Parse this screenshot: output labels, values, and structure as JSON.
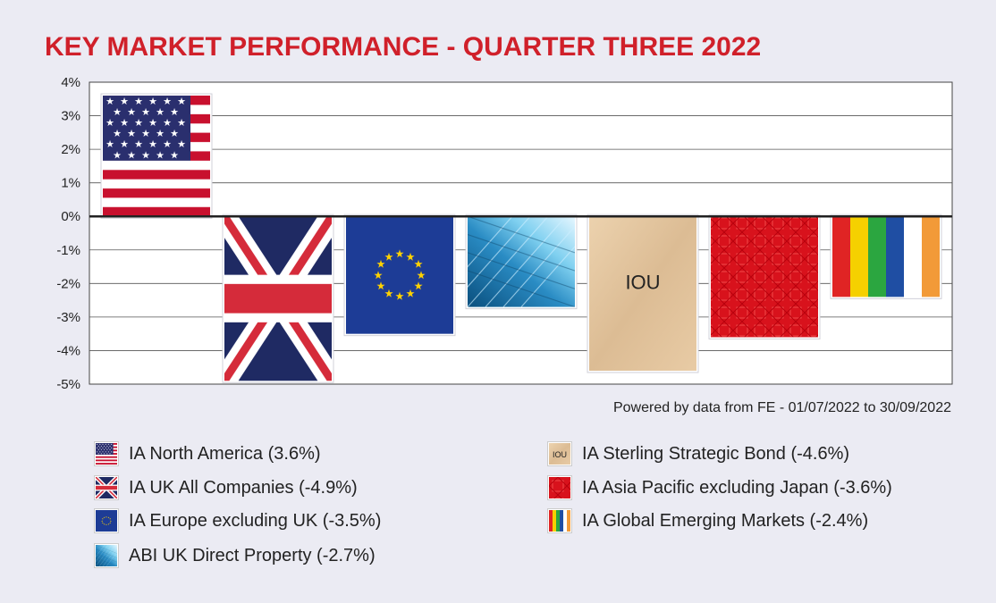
{
  "title": "KEY MARKET PERFORMANCE - QUARTER THREE 2022",
  "source_note": "Powered by data from FE - 01/07/2022 to 30/09/2022",
  "chart_data": {
    "type": "bar",
    "title": "KEY MARKET PERFORMANCE - QUARTER THREE 2022",
    "ylim": [
      -5,
      4
    ],
    "yticks": [
      4,
      3,
      2,
      1,
      0,
      -1,
      -2,
      -3,
      -4,
      -5
    ],
    "ytick_labels": [
      "4%",
      "3%",
      "2%",
      "1%",
      "0%",
      "-1%",
      "-2%",
      "-3%",
      "-4%",
      "-5%"
    ],
    "grid": true,
    "legend_placement": "bottom",
    "categories": [
      "IA North America",
      "IA UK All Companies",
      "IA Europe excluding UK",
      "ABI UK Direct Property",
      "IA Sterling Strategic Bond",
      "IA Asia Pacific excluding Japan",
      "IA Global Emerging Markets"
    ],
    "values": [
      3.6,
      -4.9,
      -3.5,
      -2.7,
      -4.6,
      -3.6,
      -2.4
    ],
    "bar_patterns": [
      "us-flag",
      "uk-flag",
      "eu-flag",
      "glass-building",
      "iou-paper",
      "red-chinese-pattern",
      "rainbow-stripes"
    ],
    "bar_text": [
      "",
      "",
      "",
      "",
      "IOU",
      "",
      ""
    ]
  },
  "legend": [
    {
      "label": "IA North America (3.6%)",
      "icon": "us-flag-icon"
    },
    {
      "label": "IA UK All Companies (-4.9%)",
      "icon": "uk-flag-icon"
    },
    {
      "label": "IA Europe excluding UK (-3.5%)",
      "icon": "eu-flag-icon"
    },
    {
      "label": "ABI UK Direct Property (-2.7%)",
      "icon": "glass-building-icon"
    },
    {
      "label": "IA Sterling Strategic Bond (-4.6%)",
      "icon": "iou-icon",
      "icon_text": "IOU"
    },
    {
      "label": "IA Asia Pacific excluding Japan (-3.6%)",
      "icon": "red-pattern-icon"
    },
    {
      "label": "IA Global Emerging Markets (-2.4%)",
      "icon": "rainbow-stripes-icon"
    }
  ]
}
